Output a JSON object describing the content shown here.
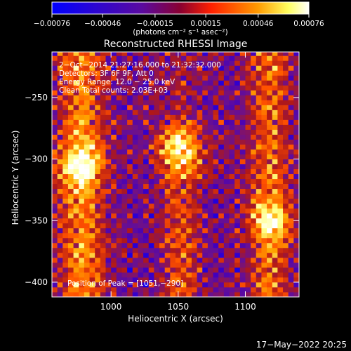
{
  "colorbar": {
    "tick_labels": [
      "−0.00076",
      "−0.00046",
      "−0.00015",
      "0.00015",
      "0.00046",
      "0.00076"
    ],
    "tick_values": [
      -0.00076,
      -0.00046,
      -0.00015,
      0.00015,
      0.00046,
      0.00076
    ],
    "range": [
      -0.00076,
      0.00076
    ],
    "units_label": "(photons cm⁻² s⁻¹ asec⁻²)"
  },
  "chart_data": {
    "type": "heatmap",
    "title": "Reconstructed RHESSI Image",
    "xlabel": "Heliocentric X (arcsec)",
    "ylabel": "Heliocentric Y (arcsec)",
    "xlim": [
      956,
      1140
    ],
    "ylim": [
      -412,
      -213
    ],
    "x_ticks": [
      1000,
      1050,
      1100
    ],
    "x_tick_labels": [
      "1000",
      "1050",
      "1100"
    ],
    "y_ticks": [
      -250,
      -300,
      -350,
      -400
    ],
    "y_tick_labels": [
      "−250",
      "−300",
      "−350",
      "−400"
    ],
    "annotations": [
      "2−Oct−2014 21:27:16.000 to 21:32:32.000",
      "Detectors: 3F 6F 9F, Att 0",
      "Energy Range: 12.0 − 25.0 keV",
      "Clean    Total counts: 2.03E+03"
    ],
    "peak_label": "Position of Peak = [1051,−290]",
    "peak": {
      "x": 1051,
      "y": -290
    },
    "sources": [
      {
        "x": 1051,
        "y": -290,
        "strength": 1.0
      },
      {
        "x": 978,
        "y": -305,
        "strength": 0.78
      },
      {
        "x": 1120,
        "y": -350,
        "strength": 0.62
      }
    ],
    "colormap": [
      "#0000ff",
      "#4000c0",
      "#6a1090",
      "#b01818",
      "#ff5000",
      "#ffa500",
      "#ffff80",
      "#ffffff"
    ]
  },
  "footer": {
    "date_stamp": "17−May−2022 20:25"
  }
}
